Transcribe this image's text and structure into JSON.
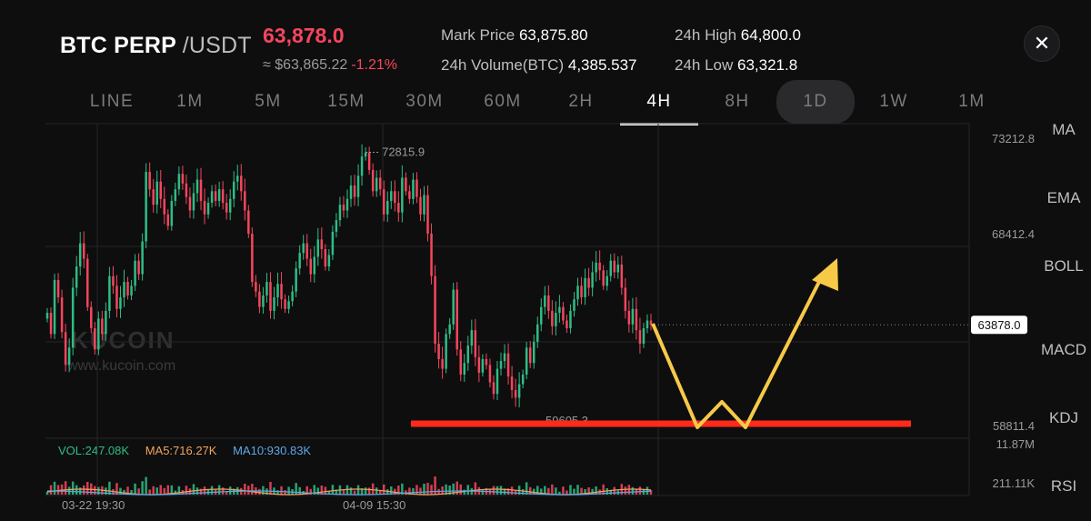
{
  "header": {
    "pair_base": "BTC PERP",
    "pair_quote": "/USDT",
    "last_price": "63,878.0",
    "fiat_price": "≈ $63,865.22",
    "change_pct": "-1.21%",
    "close_icon": "close-icon",
    "stats": {
      "mark_price_label": "Mark Price",
      "mark_price": "63,875.80",
      "volume_label": "24h Volume(BTC)",
      "volume": "4,385.537",
      "high_label": "24h High",
      "high": "64,800.0",
      "low_label": "24h Low",
      "low": "63,321.8"
    }
  },
  "tabs": [
    {
      "label": "LINE"
    },
    {
      "label": "1M"
    },
    {
      "label": "5M"
    },
    {
      "label": "15M"
    },
    {
      "label": "30M"
    },
    {
      "label": "60M"
    },
    {
      "label": "2H"
    },
    {
      "label": "4H"
    },
    {
      "label": "8H"
    },
    {
      "label": "1D"
    },
    {
      "label": "1W"
    },
    {
      "label": "1M"
    }
  ],
  "active_tab": 7,
  "highlight_tab": 9,
  "indicators": [
    "MA",
    "EMA",
    "BOLL",
    "MACD",
    "KDJ",
    "RSI"
  ],
  "watermark": {
    "logo": "KUCOIN",
    "url": "www.kucoin.com"
  },
  "volume_legend": {
    "vol": "VOL:247.08K",
    "ma5": "MA5:716.27K",
    "ma10": "MA10:930.83K"
  },
  "colors": {
    "up": "#2ebd85",
    "down": "#f6465d",
    "annotation_yellow": "#f7c948",
    "support_line": "#ff2a1a",
    "vol_ma5": "#f0a35e",
    "vol_ma10": "#5fa8e6"
  },
  "chart_data": {
    "type": "candlestick",
    "price_axis": {
      "ticks": [
        "73212.8",
        "68412.4",
        "63878.0",
        "58811.4"
      ],
      "tick_values": [
        73212.8,
        68412.4,
        63878.0,
        58811.4
      ],
      "range": [
        58000,
        74300
      ]
    },
    "volume_axis": {
      "ticks": [
        "11.87M",
        "211.11K"
      ]
    },
    "time_labels": [
      "03-22 19:30",
      "04-09 15:30"
    ],
    "high_marker": {
      "label": "72815.9",
      "value": 72815.9
    },
    "low_marker": {
      "label": "59605.3",
      "value": 59605.3
    },
    "current_price_tag": "63878.0",
    "current_price": 63878.0,
    "closes": [
      64500,
      63400,
      66200,
      65300,
      63500,
      61800,
      62700,
      65800,
      66900,
      68100,
      67300,
      64800,
      63700,
      62600,
      64200,
      63400,
      64600,
      66400,
      65900,
      64700,
      65300,
      66100,
      65400,
      65900,
      67200,
      66500,
      68200,
      71800,
      70900,
      70100,
      71300,
      70400,
      69600,
      69000,
      70300,
      70900,
      71700,
      71200,
      70500,
      69800,
      70700,
      71400,
      70300,
      69600,
      70200,
      70800,
      70300,
      70900,
      70200,
      69700,
      70400,
      71300,
      71600,
      70800,
      69800,
      68600,
      66100,
      65600,
      64800,
      65400,
      66100,
      64600,
      65300,
      66000,
      65200,
      64700,
      65100,
      65600,
      66800,
      67600,
      68100,
      67300,
      66500,
      67400,
      68300,
      67800,
      66900,
      67500,
      68700,
      69300,
      70100,
      69800,
      70400,
      71100,
      70500,
      71600,
      72600,
      72800,
      71900,
      70800,
      71500,
      70900,
      69600,
      70300,
      70800,
      70200,
      69700,
      71500,
      70800,
      70400,
      71400,
      70500,
      69600,
      70600,
      68600,
      66400,
      62900,
      62100,
      61600,
      63400,
      63900,
      65700,
      62600,
      61300,
      61900,
      62800,
      63600,
      62200,
      61400,
      62100,
      61800,
      60900,
      60300,
      61600,
      62000,
      62400,
      61200,
      60500,
      60100,
      60800,
      61300,
      62700,
      61900,
      63000,
      63900,
      64800,
      65400,
      64600,
      63800,
      64500,
      64800,
      64100,
      63700,
      64600,
      65200,
      65900,
      65300,
      66300,
      65800,
      66600,
      67100,
      66700,
      65900,
      66400,
      67200,
      66600,
      67000,
      65800,
      64600,
      63900,
      64700,
      63600,
      62900,
      63700,
      64100,
      63878
    ]
  }
}
